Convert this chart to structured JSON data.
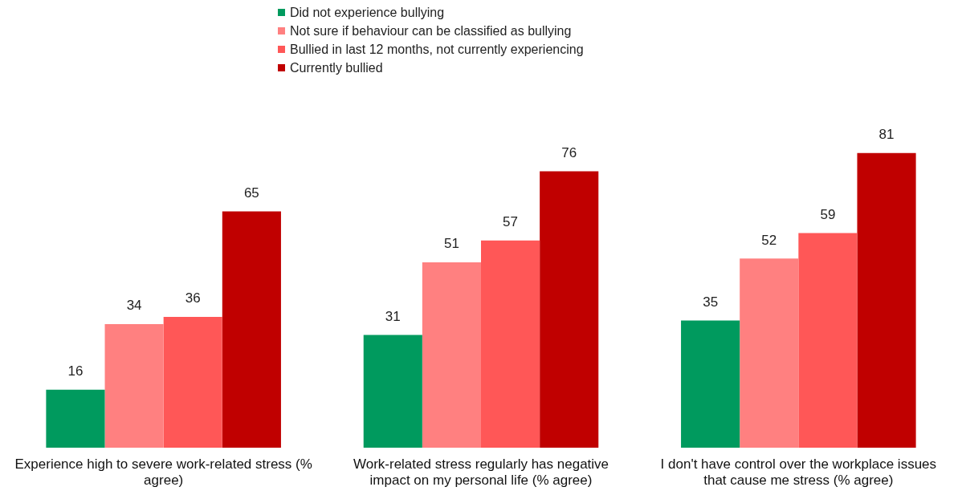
{
  "chart_data": {
    "type": "bar",
    "categories": [
      "Experience high to severe work-related stress (% agree)",
      "Work-related stress regularly has negative impact on my personal life (% agree)",
      "I don't have control over the workplace issues that cause me stress (% agree)"
    ],
    "series": [
      {
        "name": "Did not experience bullying",
        "color": "#009a5e",
        "values": [
          16,
          31,
          35
        ]
      },
      {
        "name": "Not sure if behaviour can be classified as bullying",
        "color": "#ff8080",
        "values": [
          34,
          51,
          52
        ]
      },
      {
        "name": "Bullied in last 12 months, not currently experiencing",
        "color": "#ff5757",
        "values": [
          36,
          57,
          59
        ]
      },
      {
        "name": "Currently bullied",
        "color": "#c00000",
        "values": [
          65,
          76,
          81
        ]
      }
    ],
    "data_labels": true,
    "legend": "top",
    "tick_labels": "x"
  }
}
